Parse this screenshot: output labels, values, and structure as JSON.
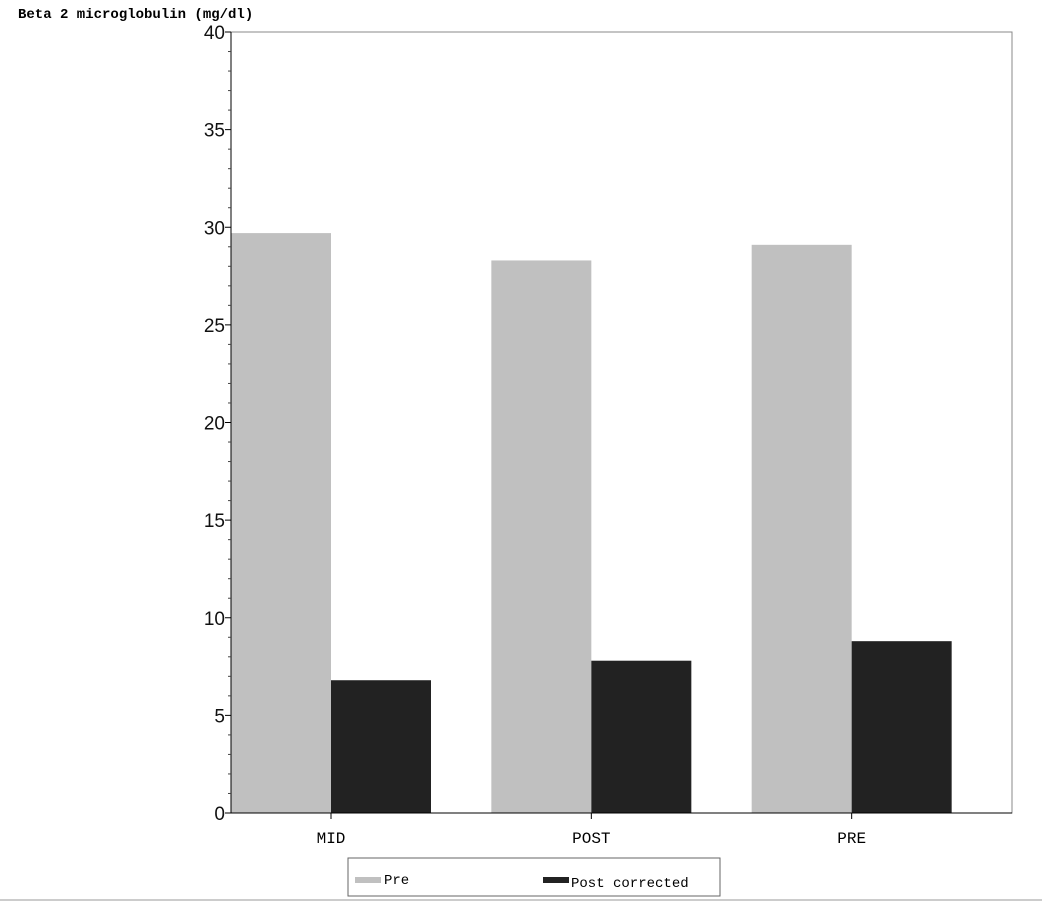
{
  "chart_data": {
    "type": "bar",
    "title": "",
    "ylabel": "Beta 2 microglobulin (mg/dl)",
    "xlabel": "",
    "ylim": [
      0,
      40
    ],
    "yticks": [
      0,
      5,
      10,
      15,
      20,
      25,
      30,
      35,
      40
    ],
    "ytick_labels": [
      "0",
      "5",
      "10",
      "15",
      "20",
      "25",
      "30",
      "35",
      "40"
    ],
    "categories": [
      "MID",
      "POST",
      "PRE"
    ],
    "series": [
      {
        "name": "Pre",
        "values": [
          29.7,
          28.3,
          29.1
        ],
        "color": "#c0c0c0"
      },
      {
        "name": "Post corrected",
        "values": [
          6.8,
          7.8,
          8.8
        ],
        "color": "#222222"
      }
    ],
    "grid": false,
    "legend_position": "bottom-center"
  }
}
